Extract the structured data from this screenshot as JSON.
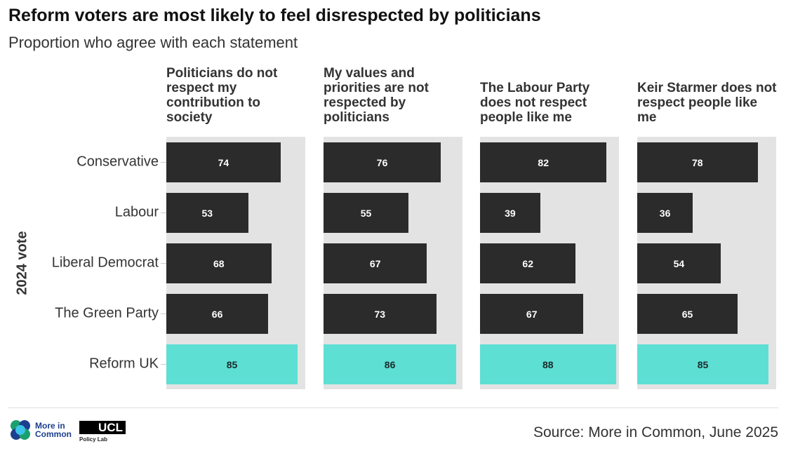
{
  "title": "Reform voters are most likely to feel disrespected by politicians",
  "subtitle": "Proportion who agree with each statement",
  "source": "Source: More in Common, June 2025",
  "logos": {
    "mic": "More in Common",
    "ucl": "UCL",
    "ucl_sub": "Policy Lab"
  },
  "colors": {
    "default": "#2b2b2b",
    "highlight": "#5ddfd4",
    "panel_bg": "#e3e3e3"
  },
  "chart_data": {
    "type": "bar",
    "orientation": "horizontal",
    "ylabel": "2024 vote",
    "categories": [
      "Conservative",
      "Labour",
      "Liberal Democrat",
      "The Green Party",
      "Reform UK"
    ],
    "highlight": "Reform UK",
    "xlim": [
      0,
      90
    ],
    "panels": [
      {
        "title": "Politicians do not respect my contribution to society",
        "values": [
          74,
          53,
          68,
          66,
          85
        ]
      },
      {
        "title": "My values and priorities are not respected by politicians",
        "values": [
          76,
          55,
          67,
          73,
          86
        ]
      },
      {
        "title": "The Labour Party does not respect people like me",
        "values": [
          82,
          39,
          62,
          67,
          88
        ]
      },
      {
        "title": "Keir Starmer does not respect people like me",
        "values": [
          78,
          36,
          54,
          65,
          85
        ]
      }
    ]
  }
}
